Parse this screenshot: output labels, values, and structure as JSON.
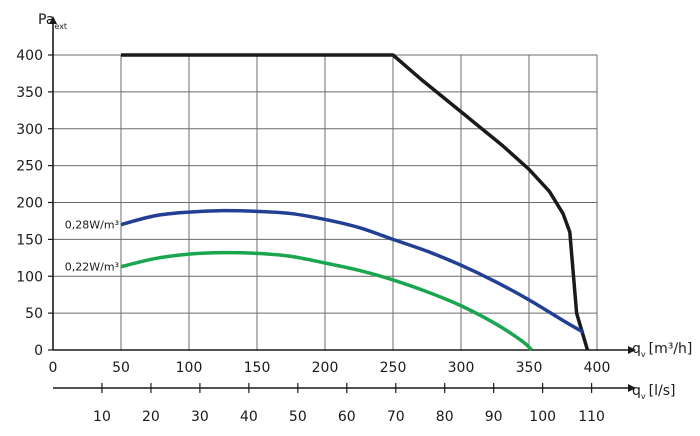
{
  "chart_data": {
    "type": "line",
    "ylabel": "Pa",
    "ylabel_sub": "ext",
    "xlabel": "q",
    "xlabel_sub": "v",
    "xlabel_unit": "[m³/h]",
    "x2label": "q",
    "x2label_sub": "v",
    "x2label_unit": "[l/s]",
    "xlim": [
      0,
      400
    ],
    "ylim": [
      0,
      400
    ],
    "x2lim": [
      0,
      111.1
    ],
    "xticks": [
      0,
      50,
      100,
      150,
      200,
      250,
      300,
      350,
      400
    ],
    "yticks": [
      0,
      50,
      100,
      150,
      200,
      250,
      300,
      350,
      400
    ],
    "x2ticks": [
      10,
      20,
      30,
      40,
      50,
      60,
      70,
      80,
      90,
      100,
      110
    ],
    "grid": true,
    "series": [
      {
        "color": "#1a1a1a",
        "points": [
          [
            50,
            400
          ],
          [
            250,
            400
          ],
          [
            270,
            368
          ],
          [
            300,
            323
          ],
          [
            330,
            278
          ],
          [
            350,
            245
          ],
          [
            365,
            215
          ],
          [
            375,
            185
          ],
          [
            380,
            160
          ],
          [
            385,
            50
          ],
          [
            393,
            0
          ]
        ]
      },
      {
        "name": "0,28W/m³",
        "color": "#213f95",
        "points": [
          [
            50,
            170
          ],
          [
            75,
            182
          ],
          [
            100,
            187
          ],
          [
            125,
            189
          ],
          [
            150,
            188
          ],
          [
            175,
            185
          ],
          [
            200,
            177
          ],
          [
            225,
            166
          ],
          [
            250,
            150
          ],
          [
            275,
            134
          ],
          [
            300,
            115
          ],
          [
            325,
            93
          ],
          [
            350,
            68
          ],
          [
            375,
            40
          ],
          [
            390,
            24
          ]
        ]
      },
      {
        "name": "0,22W/m³",
        "color": "#1aa64f",
        "points": [
          [
            50,
            113
          ],
          [
            75,
            124
          ],
          [
            100,
            130
          ],
          [
            125,
            132
          ],
          [
            150,
            131
          ],
          [
            175,
            127
          ],
          [
            200,
            118
          ],
          [
            225,
            108
          ],
          [
            250,
            95
          ],
          [
            275,
            79
          ],
          [
            300,
            60
          ],
          [
            325,
            36
          ],
          [
            345,
            12
          ],
          [
            352,
            0
          ]
        ]
      }
    ]
  }
}
